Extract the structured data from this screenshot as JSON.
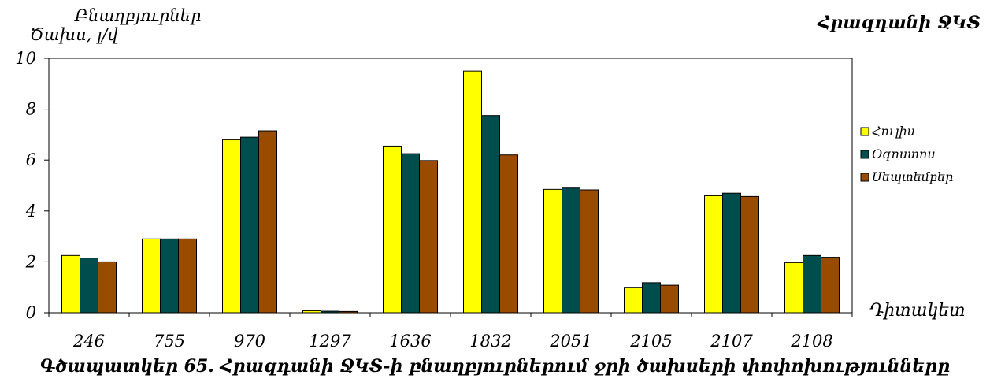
{
  "chart_data": {
    "type": "bar",
    "title": "Հրազդանի ՋԿՏ",
    "ylabel_line1": "Բնաղբյուրներ",
    "ylabel_line2": "Ծախս, լ/վ",
    "xlabel": "Դիտակետ",
    "caption": "Գծապատկեր 65. Հրազդանի ՋԿՏ-ի բնաղբյուրներում ջրի ծախսերի փոփոխությունները",
    "categories": [
      "246",
      "755",
      "970",
      "1297",
      "1636",
      "1832",
      "2051",
      "2105",
      "2107",
      "2108"
    ],
    "series": [
      {
        "name": "Հուլիս",
        "color": "#ffff00",
        "values": [
          2.25,
          2.9,
          6.8,
          0.08,
          6.55,
          9.5,
          4.85,
          1.0,
          4.6,
          1.97
        ]
      },
      {
        "name": "Օգոստոս",
        "color": "#004d4d",
        "values": [
          2.15,
          2.9,
          6.9,
          0.06,
          6.25,
          7.75,
          4.9,
          1.18,
          4.7,
          2.25
        ]
      },
      {
        "name": "Սեպտեմբեր",
        "color": "#994c00",
        "values": [
          2.0,
          2.9,
          7.15,
          0.05,
          5.98,
          6.2,
          4.83,
          1.08,
          4.57,
          2.18
        ]
      }
    ],
    "ylim": [
      0,
      10
    ],
    "yticks": [
      0,
      2,
      4,
      6,
      8,
      10
    ],
    "grid": false,
    "legend_position": "right"
  }
}
